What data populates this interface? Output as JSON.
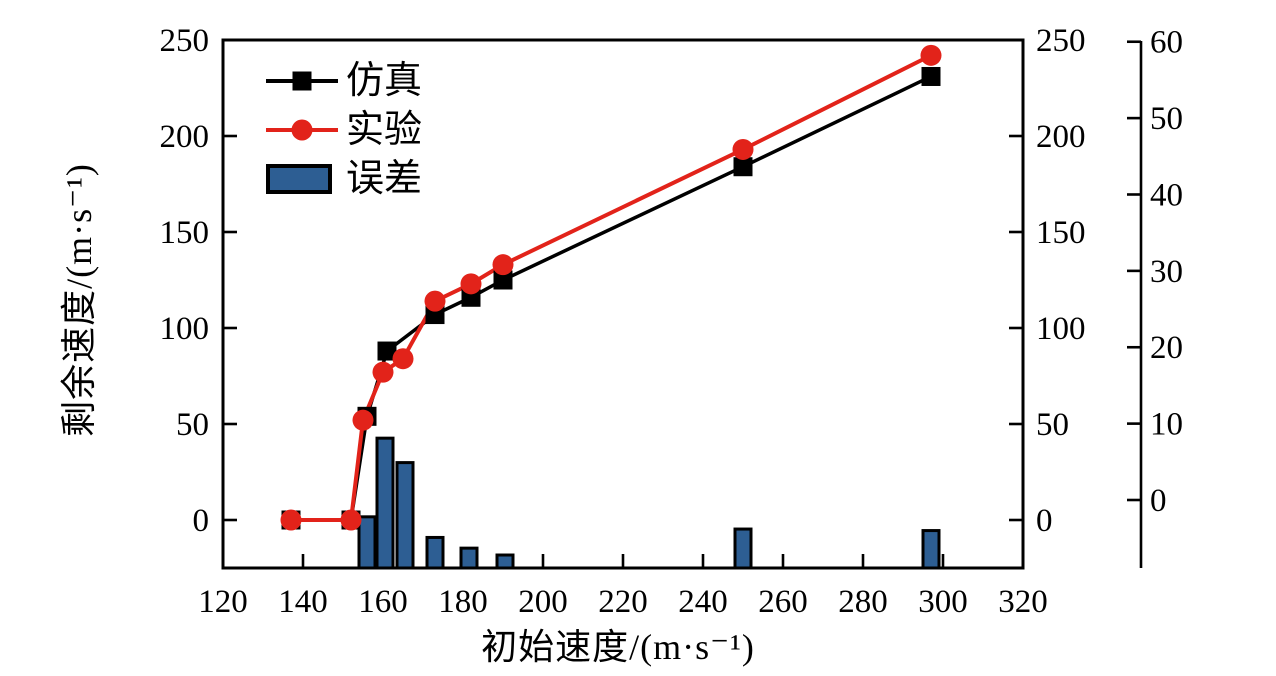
{
  "colors": {
    "background": "#ffffff",
    "frame": "#000000",
    "simulation_line": "#000000",
    "experiment_line": "#e2231a",
    "error_bar_fill": "#2d5e93",
    "error_bar_outline": "#000000",
    "text": "#000000"
  },
  "axes": {
    "x": {
      "title": "初始速度/(m·s⁻¹)",
      "tick_labels": [
        "120",
        "140",
        "160",
        "180",
        "200",
        "220",
        "240",
        "260",
        "280",
        "300",
        "320"
      ]
    },
    "y_left": {
      "title": "剩余速度/(m·s⁻¹)",
      "tick_labels": [
        "0",
        "50",
        "100",
        "150",
        "200",
        "250"
      ]
    },
    "y_right": {
      "tick_labels": [
        "0",
        "50",
        "100",
        "150",
        "200",
        "250"
      ]
    },
    "y_error": {
      "tick_labels": [
        "0",
        "10",
        "20",
        "30",
        "40",
        "50",
        "60"
      ]
    }
  },
  "legend": {
    "items": [
      {
        "label": "仿真",
        "marker": "line-with-square",
        "color": "#000000"
      },
      {
        "label": "实验",
        "marker": "line-with-circle",
        "color": "#e2231a"
      },
      {
        "label": "误差",
        "marker": "filled-bar",
        "color": "#2d5e93"
      }
    ]
  },
  "chart_data": {
    "type": "combo",
    "title": "",
    "xlabel": "初始速度/(m·s⁻¹)",
    "ylabel_left": "剩余速度/(m·s⁻¹)",
    "ylabel_error": "",
    "xlim": [
      120,
      320
    ],
    "ylim_left": [
      -25,
      250
    ],
    "ylim_error": [
      0,
      60
    ],
    "x_ticks": [
      120,
      140,
      160,
      180,
      200,
      220,
      240,
      260,
      280,
      300,
      320
    ],
    "y_ticks_left": [
      0,
      50,
      100,
      150,
      200,
      250
    ],
    "y_ticks_error": [
      0,
      10,
      20,
      30,
      40,
      50,
      60
    ],
    "grid": false,
    "legend_position": "top-left-inside",
    "series": [
      {
        "name": "仿真",
        "type": "line",
        "marker": "square",
        "color": "#000000",
        "axis": "left",
        "points": [
          [
            137,
            0
          ],
          [
            152,
            0
          ],
          [
            156,
            54
          ],
          [
            161,
            88
          ],
          [
            173,
            107
          ],
          [
            182,
            116
          ],
          [
            190,
            125
          ],
          [
            250,
            184
          ],
          [
            297,
            231
          ]
        ]
      },
      {
        "name": "实验",
        "type": "line",
        "marker": "circle",
        "color": "#e2231a",
        "axis": "left",
        "points": [
          [
            137,
            0
          ],
          [
            152,
            0
          ],
          [
            155,
            52
          ],
          [
            160,
            77
          ],
          [
            165,
            84
          ],
          [
            173,
            114
          ],
          [
            182,
            123
          ],
          [
            190,
            133
          ],
          [
            250,
            193
          ],
          [
            297,
            242
          ]
        ]
      },
      {
        "name": "误差",
        "type": "bar",
        "color": "#2d5e93",
        "axis": "error",
        "points": [
          [
            156,
            6.7
          ],
          [
            160.5,
            17
          ],
          [
            165.5,
            13.8
          ],
          [
            173,
            4
          ],
          [
            181.5,
            2.6
          ],
          [
            190.5,
            1.7
          ],
          [
            250,
            5.1
          ],
          [
            297,
            4.9
          ]
        ]
      }
    ]
  }
}
